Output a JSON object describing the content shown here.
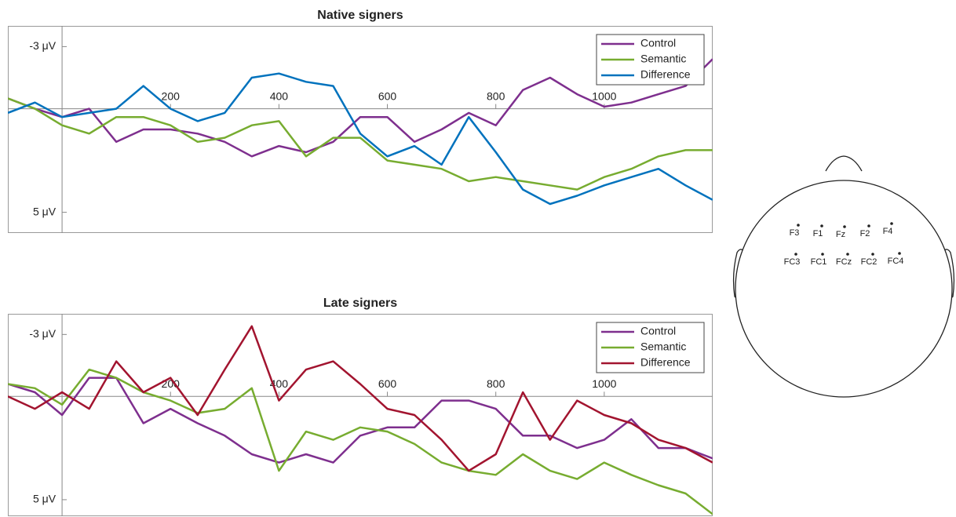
{
  "chart_data": [
    {
      "type": "line",
      "title": "Native signers",
      "x": [
        -100,
        -50,
        0,
        50,
        100,
        150,
        200,
        250,
        300,
        350,
        400,
        450,
        500,
        550,
        600,
        650,
        700,
        750,
        800,
        850,
        900,
        950,
        1000,
        1050,
        1100,
        1150,
        1200
      ],
      "series": [
        {
          "name": "Control",
          "color": "#7e2f8e",
          "values": [
            -0.5,
            0,
            0.4,
            0,
            1.6,
            1.0,
            1.0,
            1.2,
            1.6,
            2.3,
            1.8,
            2.1,
            1.6,
            0.4,
            0.4,
            1.6,
            1.0,
            0.2,
            0.8,
            -0.9,
            -1.5,
            -0.7,
            -0.1,
            -0.3,
            -0.7,
            -1.1,
            -2.4
          ]
        },
        {
          "name": "Semantic",
          "color": "#77ac30",
          "values": [
            -0.5,
            0,
            0.8,
            1.2,
            0.4,
            0.4,
            0.8,
            1.6,
            1.4,
            0.8,
            0.6,
            2.3,
            1.4,
            1.4,
            2.5,
            2.7,
            2.9,
            3.5,
            3.3,
            3.5,
            3.7,
            3.9,
            3.3,
            2.9,
            2.3,
            2.0,
            2.0
          ]
        },
        {
          "name": "Difference",
          "color": "#0072bd",
          "values": [
            0.2,
            -0.3,
            0.4,
            0.2,
            0,
            -1.1,
            0,
            0.6,
            0.2,
            -1.5,
            -1.7,
            -1.3,
            -1.1,
            1.2,
            2.3,
            1.8,
            2.7,
            0.4,
            2.1,
            3.9,
            4.6,
            4.2,
            3.7,
            3.3,
            2.9,
            3.7,
            4.4
          ]
        }
      ],
      "xlim": [
        -100,
        1200
      ],
      "xticks": [
        200,
        400,
        600,
        800,
        1000
      ],
      "ylim": [
        -4,
        6
      ],
      "y_reversed": true,
      "yticks": [
        {
          "value": -3,
          "label": "-3 μV"
        },
        {
          "value": 5,
          "label": "5 μV"
        }
      ],
      "legend": "top-right"
    },
    {
      "type": "line",
      "title": "Late signers",
      "x": [
        -100,
        -50,
        0,
        50,
        100,
        150,
        200,
        250,
        300,
        350,
        400,
        450,
        500,
        550,
        600,
        650,
        700,
        750,
        800,
        850,
        900,
        950,
        1000,
        1050,
        1100,
        1150,
        1200
      ],
      "series": [
        {
          "name": "Control",
          "color": "#7e2f8e",
          "values": [
            -0.6,
            -0.2,
            0.9,
            -0.9,
            -0.9,
            1.3,
            0.6,
            1.3,
            1.9,
            2.8,
            3.2,
            2.8,
            3.2,
            1.9,
            1.5,
            1.5,
            0.2,
            0.2,
            0.6,
            1.9,
            1.9,
            2.5,
            2.1,
            1.1,
            2.5,
            2.5,
            3.0
          ]
        },
        {
          "name": "Semantic",
          "color": "#77ac30",
          "values": [
            -0.6,
            -0.4,
            0.4,
            -1.3,
            -0.9,
            -0.2,
            0.2,
            0.8,
            0.6,
            -0.4,
            3.6,
            1.7,
            2.1,
            1.5,
            1.7,
            2.3,
            3.2,
            3.6,
            3.8,
            2.8,
            3.6,
            4.0,
            3.2,
            3.8,
            4.3,
            4.7,
            5.7
          ]
        },
        {
          "name": "Difference",
          "color": "#a2142f",
          "values": [
            0,
            0.6,
            -0.2,
            0.6,
            -1.7,
            -0.2,
            -0.9,
            0.9,
            -1.3,
            -3.4,
            0.2,
            -1.3,
            -1.7,
            -0.6,
            0.6,
            0.9,
            2.1,
            3.6,
            2.8,
            -0.2,
            2.1,
            0.2,
            0.9,
            1.3,
            2.1,
            2.5,
            3.2
          ]
        }
      ],
      "xlim": [
        -100,
        1200
      ],
      "xticks": [
        200,
        400,
        600,
        800,
        1000
      ],
      "ylim": [
        -4,
        5.8
      ],
      "y_reversed": true,
      "yticks": [
        {
          "value": -3,
          "label": "-3 μV"
        },
        {
          "value": 5,
          "label": "5 μV"
        }
      ],
      "legend": "top-right"
    }
  ],
  "head_diagram": {
    "electrodes": [
      "F3",
      "F1",
      "Fz",
      "F2",
      "F4",
      "FC3",
      "FC1",
      "FCz",
      "FC2",
      "FC4"
    ]
  }
}
